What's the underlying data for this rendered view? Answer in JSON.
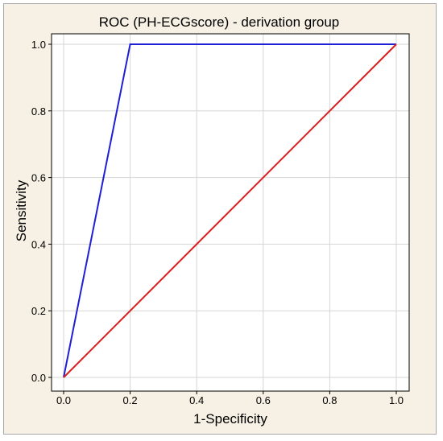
{
  "chart_data": {
    "type": "line",
    "title": "ROC (PH-ECGscore) - derivation group",
    "xlabel": "1-Specificity",
    "ylabel": "Sensitivity",
    "xlim": [
      0,
      1
    ],
    "ylim": [
      0,
      1
    ],
    "xticks": [
      "0.0",
      "0.2",
      "0.4",
      "0.6",
      "0.8",
      "1.0"
    ],
    "yticks": [
      "0.0",
      "0.2",
      "0.4",
      "0.6",
      "0.8",
      "1.0"
    ],
    "grid": true,
    "legend": "none",
    "series": [
      {
        "color": "#1f1fd6",
        "x": [
          0.0,
          0.2,
          1.0
        ],
        "y": [
          0.0,
          1.0,
          1.0
        ]
      },
      {
        "color": "#d81e1e",
        "x": [
          0.0,
          1.0
        ],
        "y": [
          0.0,
          1.0
        ]
      }
    ]
  }
}
